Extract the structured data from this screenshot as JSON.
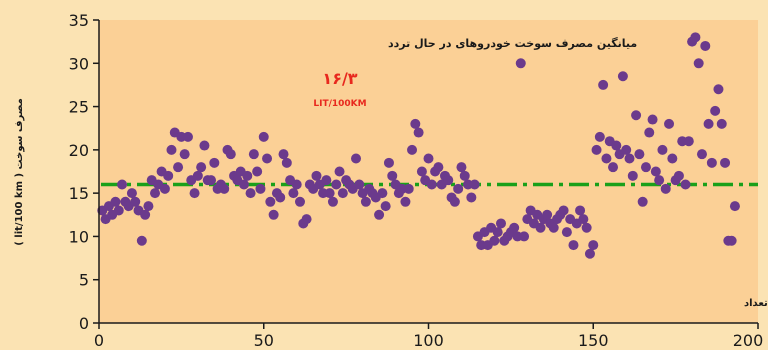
{
  "chart_data": {
    "type": "scatter",
    "title": "",
    "ylabel": "مصرف سوخت ( lit/100 km )",
    "xlabel": "تعداد",
    "xlim": [
      0,
      200
    ],
    "ylim": [
      0,
      35
    ],
    "xticks": [
      0,
      50,
      100,
      150,
      200
    ],
    "yticks": [
      0,
      5,
      10,
      15,
      20,
      25,
      30,
      35
    ],
    "grid": false,
    "annotation": {
      "title": "میانگین مصرف سوخت خودروهای در حال تردد",
      "value": "۱۶/۳",
      "unit": "LIT/100KM"
    },
    "reference_line": {
      "y": 16,
      "style": "dash-dot",
      "color": "#1aa01a"
    },
    "point_color": "#6b3a8c",
    "points": [
      [
        1,
        13
      ],
      [
        2,
        12
      ],
      [
        3,
        13.5
      ],
      [
        4,
        12.5
      ],
      [
        5,
        14
      ],
      [
        6,
        13
      ],
      [
        7,
        16
      ],
      [
        8,
        14
      ],
      [
        9,
        13.5
      ],
      [
        10,
        15
      ],
      [
        11,
        14
      ],
      [
        12,
        13
      ],
      [
        13,
        9.5
      ],
      [
        14,
        12.5
      ],
      [
        15,
        13.5
      ],
      [
        16,
        16.5
      ],
      [
        17,
        15
      ],
      [
        18,
        16
      ],
      [
        19,
        17.5
      ],
      [
        20,
        15.5
      ],
      [
        21,
        17
      ],
      [
        22,
        20
      ],
      [
        23,
        22
      ],
      [
        24,
        18
      ],
      [
        25,
        21.5
      ],
      [
        26,
        19.5
      ],
      [
        27,
        21.5
      ],
      [
        28,
        16.5
      ],
      [
        29,
        15
      ],
      [
        30,
        17
      ],
      [
        31,
        18
      ],
      [
        32,
        20.5
      ],
      [
        33,
        16.5
      ],
      [
        34,
        16.5
      ],
      [
        35,
        18.5
      ],
      [
        36,
        15.5
      ],
      [
        37,
        16
      ],
      [
        38,
        15.5
      ],
      [
        39,
        20
      ],
      [
        40,
        19.5
      ],
      [
        41,
        17
      ],
      [
        42,
        16.5
      ],
      [
        43,
        17.5
      ],
      [
        44,
        16
      ],
      [
        45,
        17
      ],
      [
        46,
        15
      ],
      [
        47,
        19.5
      ],
      [
        48,
        17.5
      ],
      [
        49,
        15.5
      ],
      [
        50,
        21.5
      ],
      [
        51,
        19
      ],
      [
        52,
        14
      ],
      [
        53,
        12.5
      ],
      [
        54,
        15
      ],
      [
        55,
        14.5
      ],
      [
        56,
        19.5
      ],
      [
        57,
        18.5
      ],
      [
        58,
        16.5
      ],
      [
        59,
        15
      ],
      [
        60,
        16
      ],
      [
        61,
        14
      ],
      [
        62,
        11.5
      ],
      [
        63,
        12
      ],
      [
        64,
        16
      ],
      [
        65,
        15.5
      ],
      [
        66,
        17
      ],
      [
        67,
        16
      ],
      [
        68,
        15
      ],
      [
        69,
        16.5
      ],
      [
        70,
        15
      ],
      [
        71,
        14
      ],
      [
        72,
        16
      ],
      [
        73,
        17.5
      ],
      [
        74,
        15
      ],
      [
        75,
        16.5
      ],
      [
        76,
        16
      ],
      [
        77,
        15.5
      ],
      [
        78,
        19
      ],
      [
        79,
        16
      ],
      [
        80,
        15
      ],
      [
        81,
        14
      ],
      [
        82,
        15.5
      ],
      [
        83,
        15
      ],
      [
        84,
        14.5
      ],
      [
        85,
        12.5
      ],
      [
        86,
        15
      ],
      [
        87,
        13.5
      ],
      [
        88,
        18.5
      ],
      [
        89,
        17
      ],
      [
        90,
        16
      ],
      [
        91,
        15
      ],
      [
        92,
        15.5
      ],
      [
        93,
        14
      ],
      [
        94,
        15.5
      ],
      [
        95,
        20
      ],
      [
        96,
        23
      ],
      [
        97,
        22
      ],
      [
        98,
        17.5
      ],
      [
        99,
        16.5
      ],
      [
        100,
        19
      ],
      [
        101,
        16
      ],
      [
        102,
        17.5
      ],
      [
        103,
        18
      ],
      [
        104,
        16
      ],
      [
        105,
        17
      ],
      [
        106,
        16.5
      ],
      [
        107,
        14.5
      ],
      [
        108,
        14
      ],
      [
        109,
        15.5
      ],
      [
        110,
        18
      ],
      [
        111,
        17
      ],
      [
        112,
        16
      ],
      [
        113,
        14.5
      ],
      [
        114,
        16
      ],
      [
        115,
        10
      ],
      [
        116,
        9
      ],
      [
        117,
        10.5
      ],
      [
        118,
        9
      ],
      [
        119,
        11
      ],
      [
        120,
        9.5
      ],
      [
        121,
        10.5
      ],
      [
        122,
        11.5
      ],
      [
        123,
        9.5
      ],
      [
        124,
        10
      ],
      [
        125,
        10.5
      ],
      [
        126,
        11
      ],
      [
        127,
        10
      ],
      [
        128,
        30
      ],
      [
        129,
        10
      ],
      [
        130,
        12
      ],
      [
        131,
        13
      ],
      [
        132,
        11.5
      ],
      [
        133,
        12.5
      ],
      [
        134,
        11
      ],
      [
        135,
        12
      ],
      [
        136,
        12.5
      ],
      [
        137,
        11.5
      ],
      [
        138,
        11
      ],
      [
        139,
        12
      ],
      [
        140,
        12.5
      ],
      [
        141,
        13
      ],
      [
        142,
        10.5
      ],
      [
        143,
        12
      ],
      [
        144,
        9
      ],
      [
        145,
        11.5
      ],
      [
        146,
        13
      ],
      [
        147,
        12
      ],
      [
        148,
        11
      ],
      [
        149,
        8
      ],
      [
        150,
        9
      ],
      [
        151,
        20
      ],
      [
        152,
        21.5
      ],
      [
        153,
        27.5
      ],
      [
        154,
        19
      ],
      [
        155,
        21
      ],
      [
        156,
        18
      ],
      [
        157,
        20.5
      ],
      [
        158,
        19.5
      ],
      [
        159,
        28.5
      ],
      [
        160,
        20
      ],
      [
        161,
        19
      ],
      [
        162,
        17
      ],
      [
        163,
        24
      ],
      [
        164,
        19.5
      ],
      [
        165,
        14
      ],
      [
        166,
        18
      ],
      [
        167,
        22
      ],
      [
        168,
        23.5
      ],
      [
        169,
        17.5
      ],
      [
        170,
        16.5
      ],
      [
        171,
        20
      ],
      [
        172,
        15.5
      ],
      [
        173,
        23
      ],
      [
        174,
        19
      ],
      [
        175,
        16.5
      ],
      [
        176,
        17
      ],
      [
        177,
        21
      ],
      [
        178,
        16
      ],
      [
        179,
        21
      ],
      [
        180,
        32.5
      ],
      [
        181,
        33
      ],
      [
        182,
        30
      ],
      [
        183,
        19.5
      ],
      [
        184,
        32
      ],
      [
        185,
        23
      ],
      [
        186,
        18.5
      ],
      [
        187,
        24.5
      ],
      [
        188,
        27
      ],
      [
        189,
        23
      ],
      [
        190,
        18.5
      ],
      [
        191,
        9.5
      ],
      [
        192,
        9.5
      ],
      [
        193,
        13.5
      ]
    ]
  }
}
